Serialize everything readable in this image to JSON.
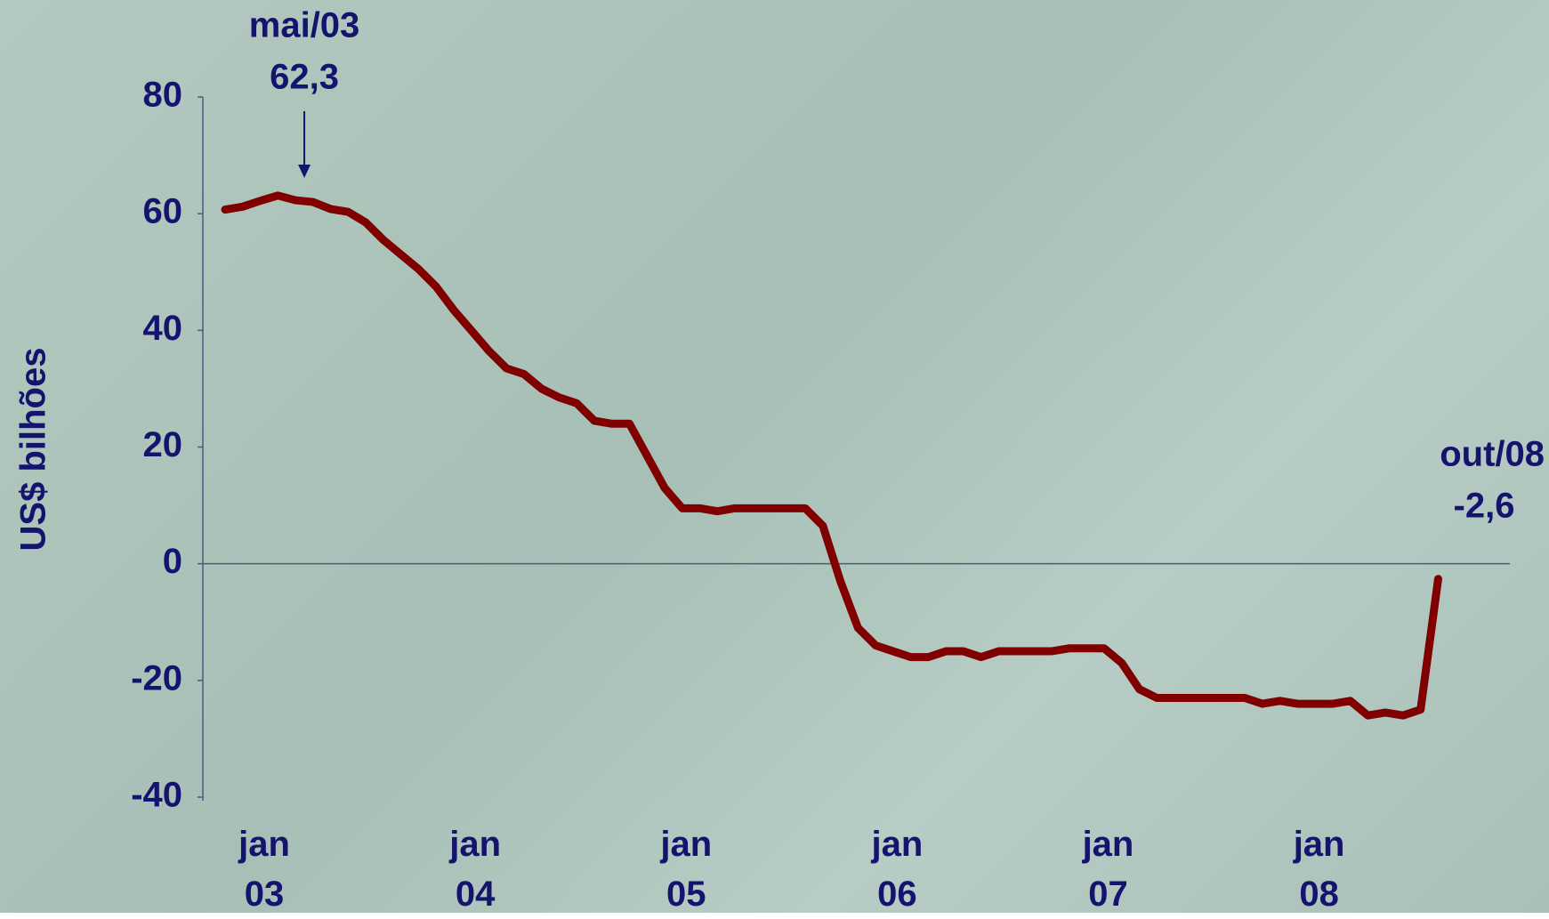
{
  "chart_data": {
    "type": "line",
    "y_label": "US$ bilhões",
    "categories": [
      "jan 03",
      null,
      null,
      null,
      null,
      null,
      null,
      null,
      null,
      null,
      null,
      null,
      "jan 04",
      null,
      null,
      null,
      null,
      null,
      null,
      null,
      null,
      null,
      null,
      null,
      "jan 05",
      null,
      null,
      null,
      null,
      null,
      null,
      null,
      null,
      null,
      null,
      null,
      "jan 06",
      null,
      null,
      null,
      null,
      null,
      null,
      null,
      null,
      null,
      null,
      null,
      "jan 07",
      null,
      null,
      null,
      null,
      null,
      null,
      null,
      null,
      null,
      null,
      null,
      "jan 08",
      null,
      null,
      null,
      null,
      null,
      null,
      null,
      null,
      null
    ],
    "series": [
      {
        "name": "US$ bilhões",
        "color": "#800000",
        "values": [
          60.7,
          61.2,
          62.2,
          63.1,
          62.3,
          62.0,
          60.8,
          60.3,
          58.5,
          55.5,
          53,
          50.5,
          47.5,
          43.5,
          40,
          36.5,
          33.5,
          32.5,
          30,
          28.5,
          27.5,
          24.5,
          24,
          24,
          18.5,
          13,
          9.5,
          9.5,
          9,
          9.5,
          9.5,
          9.5,
          9.5,
          9.5,
          6.5,
          -3,
          -11,
          -14,
          -15,
          -16,
          -16,
          -15,
          -15,
          -16,
          -15,
          -15,
          -15,
          -15,
          -14.5,
          -14.5,
          -14.5,
          -17,
          -21.5,
          -23,
          -23,
          -23,
          -23,
          -23,
          -23,
          -24,
          -23.5,
          -24,
          -24,
          -24,
          -23.5,
          -26,
          -25.5,
          -26,
          -25,
          -2.6
        ],
        "value_labels": [
          null,
          null,
          null,
          null,
          "62,3",
          null,
          null,
          null,
          null,
          null,
          null,
          null,
          null,
          null,
          null,
          null,
          null,
          null,
          null,
          null,
          null,
          null,
          null,
          null,
          null,
          null,
          null,
          null,
          null,
          null,
          null,
          null,
          null,
          null,
          null,
          null,
          null,
          null,
          null,
          null,
          null,
          null,
          null,
          null,
          null,
          null,
          null,
          null,
          null,
          null,
          null,
          null,
          null,
          null,
          null,
          null,
          null,
          null,
          null,
          null,
          null,
          null,
          null,
          null,
          null,
          null,
          null,
          null,
          null,
          "-2,6"
        ]
      }
    ],
    "annotations": [
      "mai/03",
      "out/08"
    ],
    "ylim": [
      -40,
      80
    ],
    "yticks": [
      -40,
      -20,
      0,
      20,
      40,
      60,
      80
    ]
  }
}
